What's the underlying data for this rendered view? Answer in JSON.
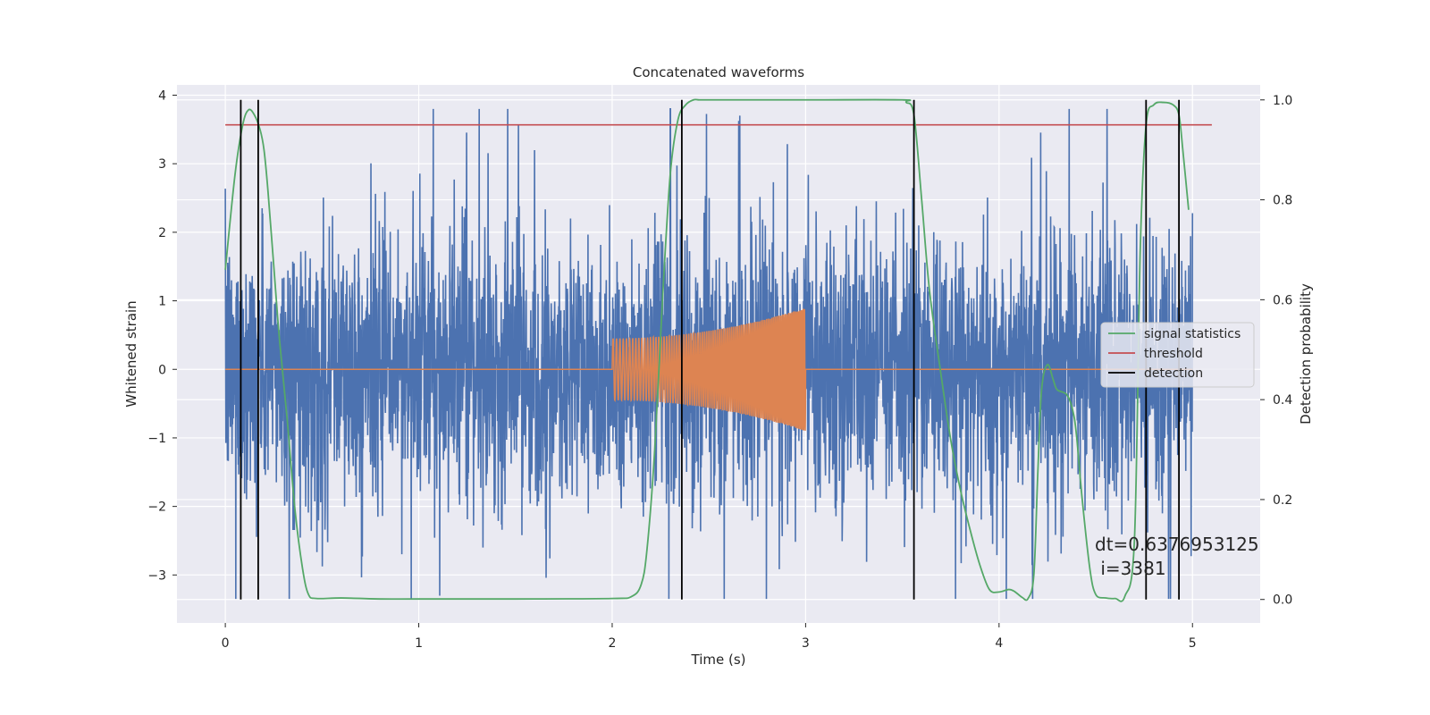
{
  "chart_data": {
    "type": "line",
    "title": "Concatenated waveforms",
    "xlabel": "Time (s)",
    "ylabel": "Whitened strain",
    "ylabel_right": "Detection probability",
    "xlim": [
      -0.25,
      5.35
    ],
    "ylim": [
      -3.7,
      4.15
    ],
    "ylim_right": [
      -0.047,
      1.03
    ],
    "x_ticks": [
      "0",
      "1",
      "2",
      "3",
      "4",
      "5"
    ],
    "y_ticks": [
      "−3",
      "−2",
      "−1",
      "0",
      "1",
      "2",
      "3",
      "4"
    ],
    "y_ticks_right": [
      "0.0",
      "0.2",
      "0.4",
      "0.6",
      "0.8",
      "1.0"
    ],
    "grid": true,
    "legend_position": "center-right",
    "legend": [
      "signal statistics",
      "threshold",
      "detection"
    ],
    "colors": {
      "noise": "#4c72b0",
      "injection": "#dd8452",
      "signal_statistics": "#55a868",
      "threshold": "#c44e52",
      "detection": "#000000",
      "background": "#eaeaf2",
      "grid": "#ffffff"
    },
    "series": [
      {
        "name": "whitened strain (noise)",
        "x_range": [
          0,
          5.0
        ],
        "approx_amplitude": 1.0,
        "approx_peak": 3.8
      },
      {
        "name": "injected waveform",
        "x_range": [
          2.0,
          3.0
        ],
        "amplitude_start": 0.45,
        "amplitude_end": 0.9
      },
      {
        "name": "signal statistics",
        "x": [
          0.0,
          0.05,
          0.09,
          0.12,
          0.15,
          0.18,
          0.2,
          0.22,
          0.25,
          0.28,
          0.32,
          0.36,
          0.4,
          0.43,
          0.47,
          0.6,
          0.8,
          1.0,
          1.5,
          2.0,
          2.1,
          2.15,
          2.18,
          2.22,
          2.26,
          2.3,
          2.34,
          2.38,
          2.42,
          2.45,
          2.5,
          3.0,
          3.5,
          3.52,
          3.56,
          3.6,
          3.64,
          3.7,
          3.75,
          3.8,
          3.85,
          3.9,
          3.95,
          4.0,
          4.05,
          4.08,
          4.12,
          4.15,
          4.18,
          4.2,
          4.22,
          4.25,
          4.28,
          4.3,
          4.35,
          4.38,
          4.4,
          4.43,
          4.47,
          4.5,
          4.55,
          4.6,
          4.65,
          4.7,
          4.73,
          4.76,
          4.8,
          4.85,
          4.9,
          4.93,
          4.95,
          4.98
        ],
        "y": [
          0.66,
          0.85,
          0.95,
          0.98,
          0.97,
          0.94,
          0.9,
          0.82,
          0.67,
          0.52,
          0.36,
          0.18,
          0.06,
          0.01,
          0.002,
          0.003,
          0.001,
          0.001,
          0.001,
          0.002,
          0.006,
          0.03,
          0.1,
          0.3,
          0.6,
          0.85,
          0.96,
          0.99,
          1.0,
          1.0,
          1.0,
          1.0,
          1.0,
          0.995,
          0.97,
          0.8,
          0.62,
          0.45,
          0.32,
          0.22,
          0.14,
          0.07,
          0.02,
          0.015,
          0.02,
          0.016,
          0.004,
          0.002,
          0.05,
          0.25,
          0.42,
          0.47,
          0.44,
          0.42,
          0.41,
          0.38,
          0.33,
          0.2,
          0.06,
          0.01,
          0.003,
          0.002,
          0.006,
          0.12,
          0.7,
          0.95,
          0.99,
          0.995,
          0.99,
          0.97,
          0.9,
          0.78
        ]
      },
      {
        "name": "threshold",
        "x": [
          0,
          5.1
        ],
        "y": [
          0.95,
          0.95
        ]
      },
      {
        "name": "detection",
        "x": [
          0.08,
          0.17,
          2.36,
          3.56,
          4.76,
          4.93
        ],
        "y_range": [
          0.0,
          1.0
        ]
      }
    ],
    "annotation": {
      "line1": "dt=0.6376953125",
      "line2": " i=3381"
    }
  }
}
